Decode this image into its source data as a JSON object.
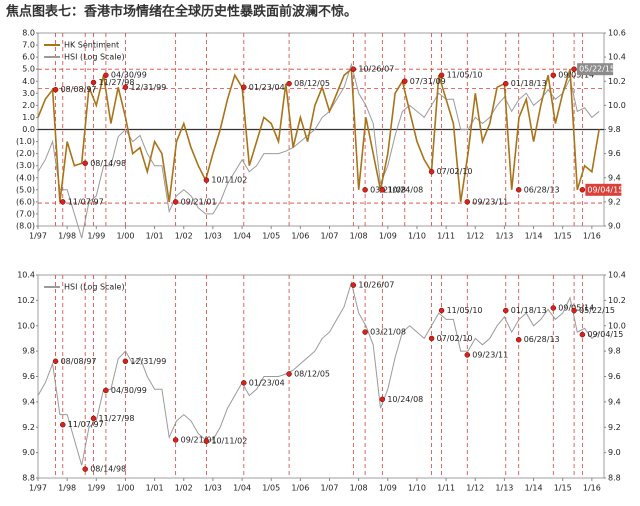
{
  "chart_data": [
    {
      "type": "line",
      "title": "焦点图表七：香港市场情绪在全球历史性暴跌面前波澜不惊。",
      "x": [
        "1/97",
        "4/97",
        "7/97",
        "10/97",
        "1/98",
        "4/98",
        "7/98",
        "10/98",
        "1/99",
        "4/99",
        "7/99",
        "10/99",
        "1/00",
        "4/00",
        "7/00",
        "10/00",
        "1/01",
        "4/01",
        "7/01",
        "10/01",
        "1/02",
        "4/02",
        "7/02",
        "10/02",
        "1/03",
        "4/03",
        "7/03",
        "10/03",
        "1/04",
        "4/04",
        "7/04",
        "10/04",
        "1/05",
        "4/05",
        "7/05",
        "10/05",
        "1/06",
        "4/06",
        "7/06",
        "10/06",
        "1/07",
        "4/07",
        "7/07",
        "10/07",
        "1/08",
        "4/08",
        "7/08",
        "10/08",
        "1/09",
        "4/09",
        "7/09",
        "10/09",
        "1/10",
        "4/10",
        "7/10",
        "10/10",
        "1/11",
        "4/11",
        "7/11",
        "10/11",
        "1/12",
        "4/12",
        "7/12",
        "10/12",
        "1/13",
        "4/13",
        "7/13",
        "10/13",
        "1/14",
        "4/14",
        "7/14",
        "10/14",
        "1/15",
        "4/15",
        "7/15",
        "10/15",
        "1/16",
        "4/16"
      ],
      "xlim": [
        "1/97",
        "6/16"
      ],
      "xticks": [
        "1/97",
        "1/98",
        "1/99",
        "1/00",
        "1/01",
        "1/02",
        "1/03",
        "1/04",
        "1/05",
        "1/06",
        "1/07",
        "1/08",
        "1/09",
        "1/10",
        "1/11",
        "1/12",
        "1/13",
        "1/14",
        "1/15",
        "1/16"
      ],
      "ylim": [
        -8,
        8
      ],
      "yticks": [
        {
          "value": -8,
          "label": "(8.0)"
        },
        {
          "value": -7,
          "label": "(7.0)"
        },
        {
          "value": -6,
          "label": "(6.0)"
        },
        {
          "value": -5,
          "label": "(5.0)"
        },
        {
          "value": -4,
          "label": "(4.0)"
        },
        {
          "value": -3,
          "label": "(3.0)"
        },
        {
          "value": -2,
          "label": "(2.0)"
        },
        {
          "value": -1,
          "label": "(1.0)"
        },
        {
          "value": 0,
          "label": "0.0"
        },
        {
          "value": 1,
          "label": "1.0"
        },
        {
          "value": 2,
          "label": "2.0"
        },
        {
          "value": 3,
          "label": "3.0"
        },
        {
          "value": 4,
          "label": "4.0"
        },
        {
          "value": 5,
          "label": "5.0"
        },
        {
          "value": 6,
          "label": "6.0"
        },
        {
          "value": 7,
          "label": "7.0"
        },
        {
          "value": 8,
          "label": "8.0"
        }
      ],
      "y2lim": [
        9.0,
        10.6
      ],
      "y2ticks": [
        {
          "value": 9.0,
          "label": "9.0"
        },
        9.2,
        9.4,
        9.6,
        9.8,
        {
          "value": 10.0,
          "label": "10.0"
        },
        10.2,
        10.4,
        10.6
      ],
      "grid": false,
      "hlines": [
        5.0,
        3.4,
        -6.1
      ],
      "series": [
        {
          "name": "HK Sentiment",
          "color": "#a8741a",
          "values": [
            1.0,
            2.5,
            3.3,
            -6.0,
            -1.0,
            -3.0,
            -2.8,
            3.5,
            2.0,
            4.5,
            0.5,
            3.5,
            1.0,
            -2.0,
            -1.5,
            -3.5,
            -1.0,
            -2.0,
            -6.0,
            -1.0,
            0.5,
            -1.5,
            -3.0,
            -4.2,
            -2.0,
            0.0,
            2.5,
            4.5,
            3.5,
            -3.0,
            -1.0,
            1.0,
            0.5,
            -1.0,
            3.8,
            -1.5,
            1.0,
            -1.0,
            2.0,
            3.5,
            1.5,
            3.0,
            4.5,
            5.0,
            -5.0,
            1.0,
            -2.0,
            -5.0,
            -2.0,
            3.0,
            4.0,
            1.5,
            -1.0,
            -2.5,
            -3.5,
            4.5,
            2.5,
            0.5,
            -6.0,
            -2.0,
            3.0,
            -1.0,
            0.5,
            3.5,
            3.8,
            -5.0,
            1.0,
            2.5,
            -1.0,
            2.0,
            4.5,
            0.5,
            3.0,
            5.0,
            -5.0,
            -3.0,
            -3.5,
            0.0
          ]
        },
        {
          "name": "HSI (Log Scale)",
          "color": "#9a9a9a",
          "axis": "y2",
          "values": [
            9.45,
            9.55,
            9.7,
            9.3,
            9.3,
            9.1,
            8.9,
            9.2,
            9.25,
            9.5,
            9.5,
            9.74,
            9.8,
            9.7,
            9.75,
            9.6,
            9.5,
            9.5,
            9.12,
            9.25,
            9.3,
            9.25,
            9.15,
            9.1,
            9.1,
            9.2,
            9.35,
            9.45,
            9.55,
            9.45,
            9.5,
            9.6,
            9.6,
            9.6,
            9.62,
            9.65,
            9.7,
            9.75,
            9.8,
            9.9,
            9.95,
            10.05,
            10.15,
            10.34,
            10.1,
            10.0,
            9.85,
            9.35,
            9.5,
            9.75,
            9.95,
            10.0,
            9.95,
            9.9,
            10.0,
            10.1,
            10.05,
            10.05,
            9.8,
            9.8,
            9.9,
            9.85,
            9.9,
            10.0,
            10.07,
            9.95,
            10.05,
            10.1,
            10.0,
            10.05,
            10.13,
            10.05,
            10.1,
            10.22,
            9.95,
            9.98,
            9.9,
            9.95
          ]
        }
      ],
      "annotations": [
        {
          "date": "08/08/97",
          "value": 3.3
        },
        {
          "date": "11/07/97",
          "value": -6.0
        },
        {
          "date": "08/14/98",
          "value": -2.8
        },
        {
          "date": "11/27/98",
          "value": 3.9
        },
        {
          "date": "04/30/99",
          "value": 4.5
        },
        {
          "date": "12/31/99",
          "value": 3.5
        },
        {
          "date": "09/21/01",
          "value": -6.0
        },
        {
          "date": "10/11/02",
          "value": -4.2
        },
        {
          "date": "01/23/04",
          "value": 3.5
        },
        {
          "date": "08/12/05",
          "value": 3.8
        },
        {
          "date": "10/26/07",
          "value": 5.0
        },
        {
          "date": "03/21/08",
          "value": -5.0
        },
        {
          "date": "10/24/08",
          "value": -5.0
        },
        {
          "date": "07/31/09",
          "value": 4.0
        },
        {
          "date": "07/02/10",
          "value": -3.5
        },
        {
          "date": "11/05/10",
          "value": 4.5
        },
        {
          "date": "09/23/11",
          "value": -6.0
        },
        {
          "date": "01/18/13",
          "value": 3.8
        },
        {
          "date": "06/28/13",
          "value": -5.0
        },
        {
          "date": "09/05/14",
          "value": 4.5
        },
        {
          "date": "05/22/15",
          "value": 5.0,
          "box": "#8c8c8c"
        },
        {
          "date": "09/04/15",
          "value": -5.0,
          "box": "#d9423a"
        }
      ]
    },
    {
      "type": "line",
      "x": [
        "1/97",
        "4/97",
        "7/97",
        "10/97",
        "1/98",
        "4/98",
        "7/98",
        "10/98",
        "1/99",
        "4/99",
        "7/99",
        "10/99",
        "1/00",
        "4/00",
        "7/00",
        "10/00",
        "1/01",
        "4/01",
        "7/01",
        "10/01",
        "1/02",
        "4/02",
        "7/02",
        "10/02",
        "1/03",
        "4/03",
        "7/03",
        "10/03",
        "1/04",
        "4/04",
        "7/04",
        "10/04",
        "1/05",
        "4/05",
        "7/05",
        "10/05",
        "1/06",
        "4/06",
        "7/06",
        "10/06",
        "1/07",
        "4/07",
        "7/07",
        "10/07",
        "1/08",
        "4/08",
        "7/08",
        "10/08",
        "1/09",
        "4/09",
        "7/09",
        "10/09",
        "1/10",
        "4/10",
        "7/10",
        "10/10",
        "1/11",
        "4/11",
        "7/11",
        "10/11",
        "1/12",
        "4/12",
        "7/12",
        "10/12",
        "1/13",
        "4/13",
        "7/13",
        "10/13",
        "1/14",
        "4/14",
        "7/14",
        "10/14",
        "1/15",
        "4/15",
        "7/15",
        "10/15",
        "1/16",
        "4/16"
      ],
      "xlim": [
        "1/97",
        "6/16"
      ],
      "xticks": [
        "1/97",
        "1/98",
        "1/99",
        "1/00",
        "1/01",
        "1/02",
        "1/03",
        "1/04",
        "1/05",
        "1/06",
        "1/07",
        "1/08",
        "1/09",
        "1/10",
        "1/11",
        "1/12",
        "1/13",
        "1/14",
        "1/15",
        "1/16"
      ],
      "ylim": [
        8.8,
        10.4
      ],
      "yticks": [
        8.8,
        {
          "value": 9.0,
          "label": "9.0"
        },
        9.2,
        9.4,
        9.6,
        9.8,
        {
          "value": 10.0,
          "label": "10.0"
        },
        10.2,
        10.4
      ],
      "y2lim": [
        8.8,
        10.4
      ],
      "y2ticks": [
        8.8,
        {
          "value": 9.0,
          "label": "9.0"
        },
        9.2,
        9.4,
        9.6,
        9.8,
        {
          "value": 10.0,
          "label": "10.0"
        },
        10.2,
        10.4
      ],
      "grid": false,
      "series": [
        {
          "name": "HSI (Log Scale)",
          "color": "#9a9a9a",
          "values": [
            9.45,
            9.55,
            9.7,
            9.3,
            9.3,
            9.1,
            8.9,
            9.2,
            9.25,
            9.5,
            9.5,
            9.74,
            9.8,
            9.7,
            9.75,
            9.6,
            9.5,
            9.5,
            9.12,
            9.25,
            9.3,
            9.25,
            9.15,
            9.1,
            9.1,
            9.2,
            9.35,
            9.45,
            9.55,
            9.45,
            9.5,
            9.6,
            9.6,
            9.6,
            9.62,
            9.65,
            9.7,
            9.75,
            9.8,
            9.9,
            9.95,
            10.05,
            10.15,
            10.34,
            10.1,
            10.0,
            9.85,
            9.35,
            9.5,
            9.75,
            9.95,
            10.0,
            9.95,
            9.9,
            10.0,
            10.1,
            10.05,
            10.05,
            9.8,
            9.8,
            9.9,
            9.85,
            9.9,
            10.0,
            10.07,
            9.95,
            10.05,
            10.1,
            10.0,
            10.05,
            10.13,
            10.05,
            10.1,
            10.22,
            9.95,
            9.98,
            9.9,
            9.95
          ]
        }
      ],
      "annotations": [
        {
          "date": "08/08/97",
          "value": 9.72
        },
        {
          "date": "11/07/97",
          "value": 9.22
        },
        {
          "date": "08/14/98",
          "value": 8.87
        },
        {
          "date": "11/27/98",
          "value": 9.27
        },
        {
          "date": "04/30/99",
          "value": 9.49
        },
        {
          "date": "12/31/99",
          "value": 9.72
        },
        {
          "date": "09/21/01",
          "value": 9.1
        },
        {
          "date": "10/11/02",
          "value": 9.09
        },
        {
          "date": "01/23/04",
          "value": 9.55
        },
        {
          "date": "08/12/05",
          "value": 9.62
        },
        {
          "date": "10/26/07",
          "value": 10.32
        },
        {
          "date": "03/21/08",
          "value": 9.95
        },
        {
          "date": "10/24/08",
          "value": 9.42
        },
        {
          "date": "07/02/10",
          "value": 9.9
        },
        {
          "date": "11/05/10",
          "value": 10.12
        },
        {
          "date": "09/23/11",
          "value": 9.77
        },
        {
          "date": "01/18/13",
          "value": 10.12
        },
        {
          "date": "06/28/13",
          "value": 9.89
        },
        {
          "date": "09/05/14",
          "value": 10.14
        },
        {
          "date": "05/22/15",
          "value": 10.12
        },
        {
          "date": "09/04/15",
          "value": 9.93
        }
      ]
    }
  ]
}
